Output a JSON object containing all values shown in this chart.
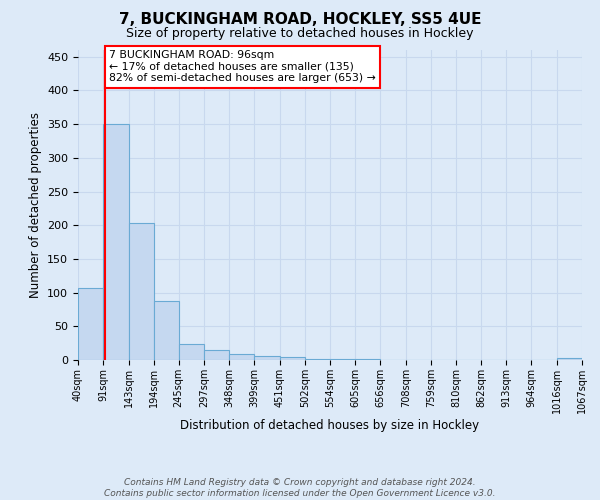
{
  "title": "7, BUCKINGHAM ROAD, HOCKLEY, SS5 4UE",
  "subtitle": "Size of property relative to detached houses in Hockley",
  "xlabel": "Distribution of detached houses by size in Hockley",
  "ylabel": "Number of detached properties",
  "bin_edges": [
    40,
    91,
    143,
    194,
    245,
    297,
    348,
    399,
    451,
    502,
    554,
    605,
    656,
    708,
    759,
    810,
    862,
    913,
    964,
    1016,
    1067
  ],
  "bar_heights": [
    107,
    350,
    203,
    88,
    24,
    15,
    9,
    6,
    4,
    2,
    1,
    1,
    0,
    0,
    0,
    0,
    0,
    0,
    0,
    3
  ],
  "bar_color": "#c5d8f0",
  "bar_edge_color": "#6aaad4",
  "grid_color": "#c8d8ee",
  "background_color": "#ddeaf8",
  "red_line_x": 96,
  "annotation_text": "7 BUCKINGHAM ROAD: 96sqm\n← 17% of detached houses are smaller (135)\n82% of semi-detached houses are larger (653) →",
  "annotation_box_color": "white",
  "annotation_box_edge_color": "red",
  "ylim": [
    0,
    460
  ],
  "yticks": [
    0,
    50,
    100,
    150,
    200,
    250,
    300,
    350,
    400,
    450
  ],
  "footer_text": "Contains HM Land Registry data © Crown copyright and database right 2024.\nContains public sector information licensed under the Open Government Licence v3.0."
}
